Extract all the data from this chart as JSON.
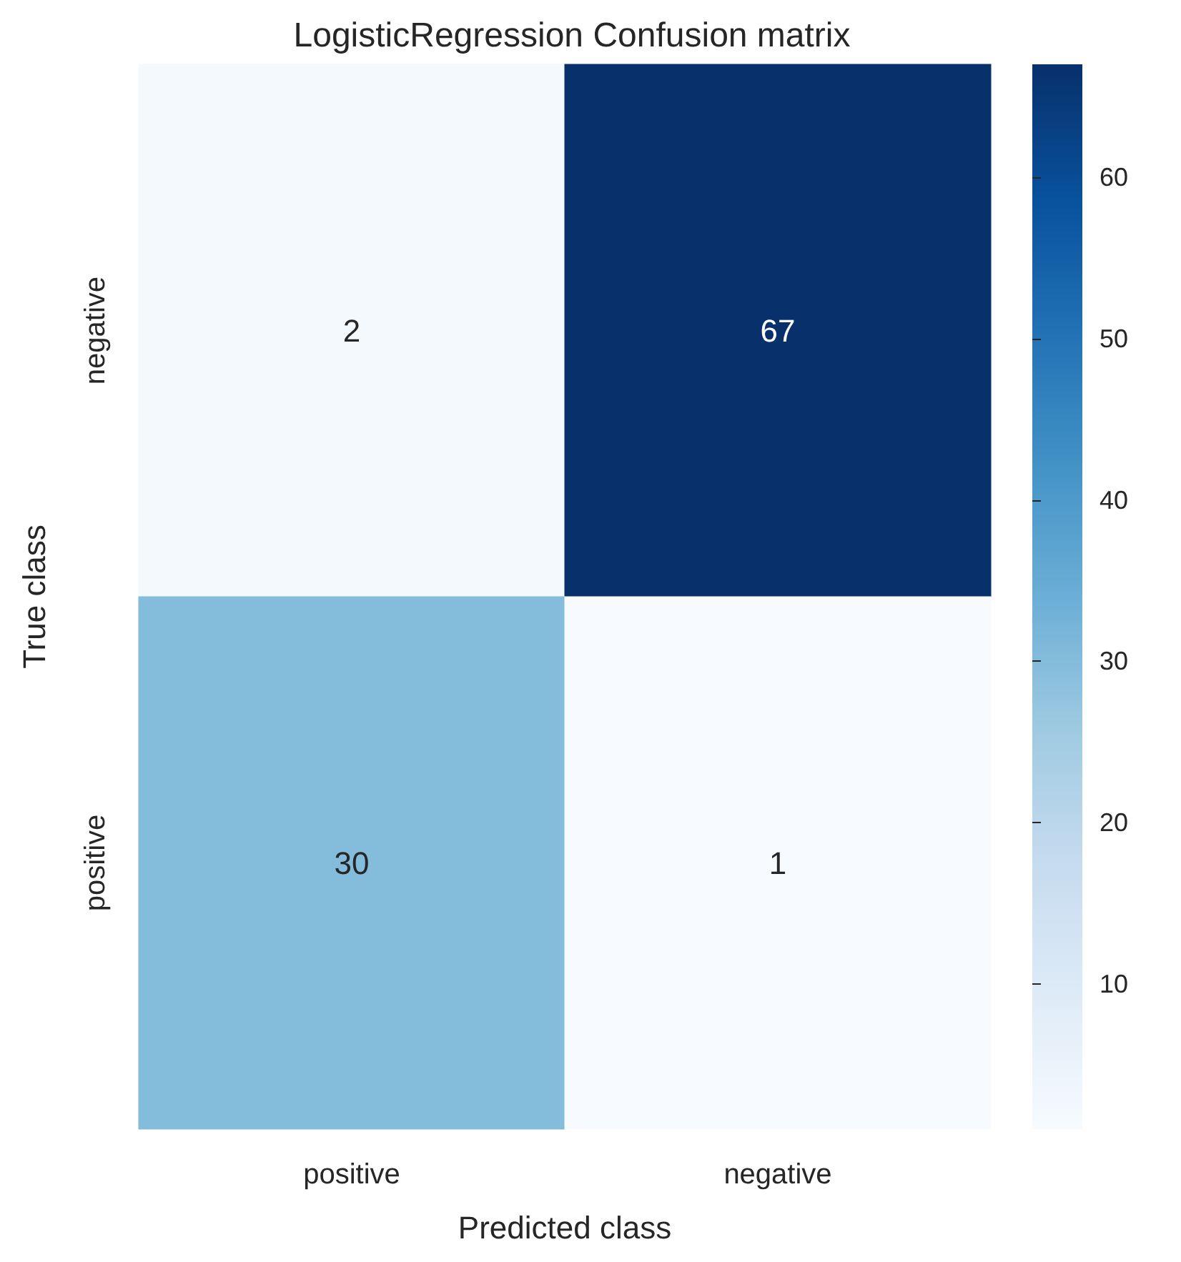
{
  "chart_data": {
    "type": "heatmap",
    "title": "LogisticRegression Confusion matrix",
    "xlabel": "Predicted class",
    "ylabel": "True class",
    "categories": [
      "positive",
      "negative"
    ],
    "y_categories": [
      "negative",
      "positive"
    ],
    "cells": [
      [
        2,
        67
      ],
      [
        30,
        1
      ]
    ],
    "data_labels": true,
    "clim": [
      1,
      67
    ],
    "cticks": [
      10,
      20,
      30,
      40,
      50,
      60
    ]
  }
}
